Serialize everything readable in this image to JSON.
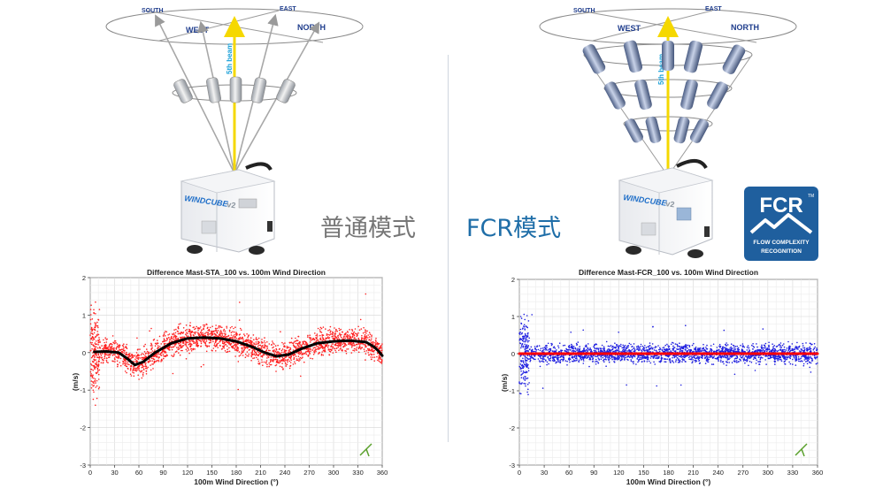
{
  "illustrations": [
    {
      "compass": {
        "south": "SOUTH",
        "east": "EAST",
        "west": "WEST",
        "north": "NORTH"
      },
      "beam_label": "5th beam",
      "device_brand": "WINDCUBE",
      "device_version": "v2"
    },
    {
      "compass": {
        "south": "SOUTH",
        "east": "EAST",
        "west": "WEST",
        "north": "NORTH"
      },
      "beam_label": "5th beam",
      "device_brand": "WINDCUBE",
      "device_version": "v2"
    }
  ],
  "modes": {
    "standard": "普通模式",
    "fcr": "FCR模式"
  },
  "fcr_badge": {
    "title": "FCR",
    "line1": "FLOW COMPLEXITY",
    "line2": "RECOGNITION",
    "tm": "TM",
    "color": "#1f5f9e"
  },
  "chart_data": [
    {
      "type": "scatter",
      "title": "Difference Mast-STA_100 vs. 100m Wind Direction",
      "xlabel": "100m Wind Direction (°)",
      "ylabel": "(m/s)",
      "xlim": [
        0,
        360
      ],
      "ylim": [
        -3,
        2
      ],
      "xticks": [
        "0",
        "30",
        "60",
        "90",
        "120",
        "150",
        "180",
        "210",
        "240",
        "270",
        "300",
        "330",
        "360"
      ],
      "yticks": [
        "2",
        "1",
        "0",
        "-1",
        "-2",
        "-3"
      ],
      "grid": true,
      "point_color": "#ff2020",
      "trend_color": "#000000",
      "trend": {
        "x": [
          5,
          20,
          35,
          45,
          55,
          65,
          80,
          100,
          120,
          140,
          160,
          180,
          200,
          215,
          230,
          245,
          260,
          280,
          300,
          320,
          340,
          350,
          355,
          360
        ],
        "y": [
          0.02,
          0.03,
          0.0,
          -0.15,
          -0.33,
          -0.25,
          0.0,
          0.25,
          0.38,
          0.4,
          0.38,
          0.3,
          0.15,
          0.0,
          -0.1,
          -0.05,
          0.1,
          0.25,
          0.3,
          0.32,
          0.28,
          0.15,
          0.05,
          -0.08
        ]
      }
    },
    {
      "type": "scatter",
      "title": "Difference Mast-FCR_100 vs. 100m Wind Direction",
      "xlabel": "100m Wind Direction (°)",
      "ylabel": "(m/s)",
      "xlim": [
        0,
        360
      ],
      "ylim": [
        -3,
        2
      ],
      "xticks": [
        "0",
        "30",
        "60",
        "90",
        "120",
        "150",
        "180",
        "210",
        "240",
        "270",
        "300",
        "330",
        "360"
      ],
      "yticks": [
        "2",
        "1",
        "0",
        "-1",
        "-2",
        "-3"
      ],
      "grid": true,
      "point_color": "#1f1fe0",
      "trend_color": "#ff0000",
      "trend": {
        "x": [
          0,
          360
        ],
        "y": [
          0.0,
          0.0
        ]
      }
    }
  ]
}
